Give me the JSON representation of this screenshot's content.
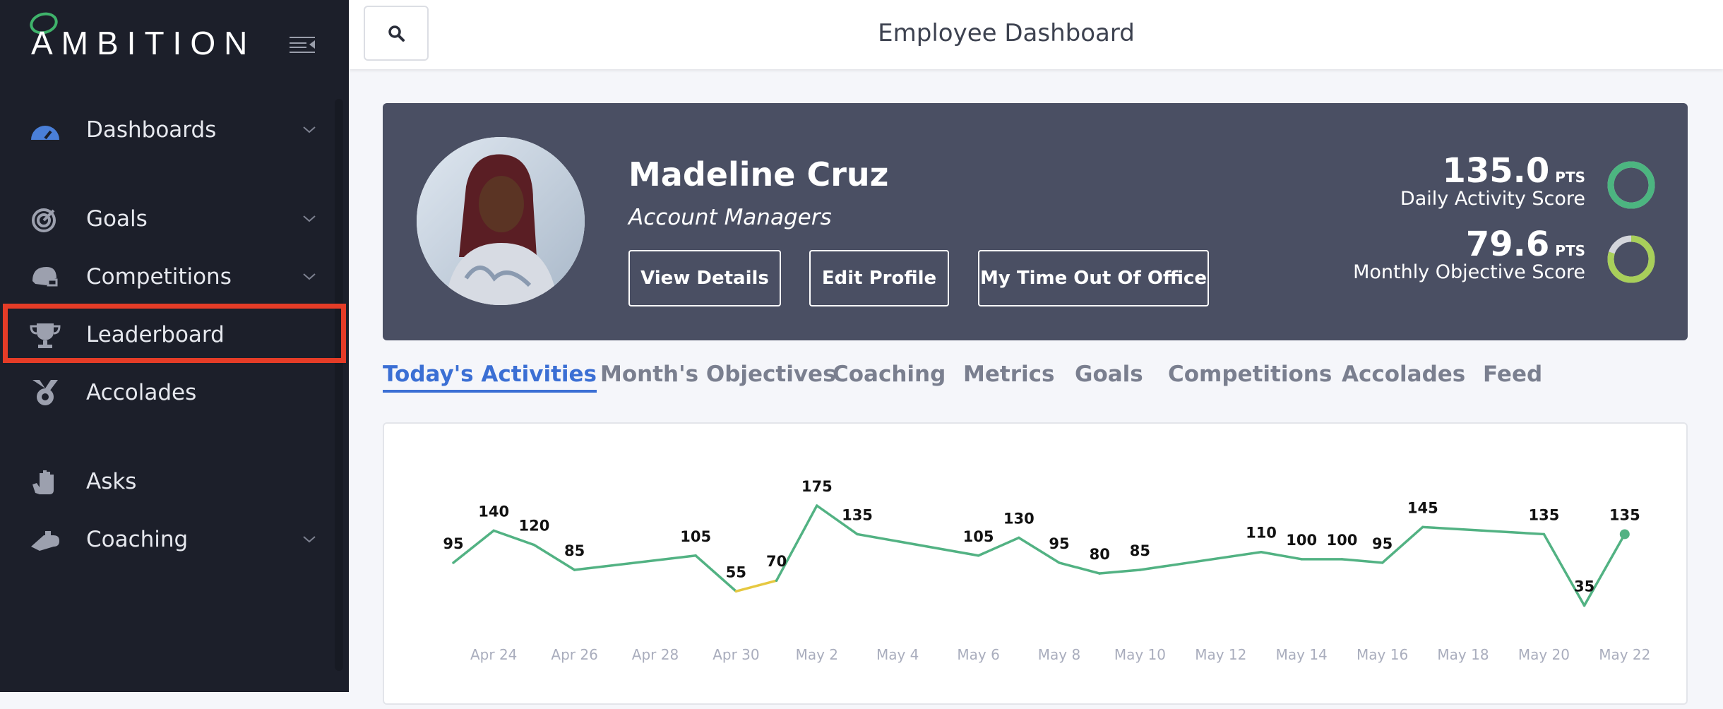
{
  "sidebar": {
    "logo": "AMBITION",
    "items": [
      {
        "label": "Dashboards",
        "icon": "dashboard-gauge-icon",
        "chevron": true
      },
      {
        "label": "Goals",
        "icon": "target-icon",
        "chevron": true
      },
      {
        "label": "Competitions",
        "icon": "football-helmet-icon",
        "chevron": true
      },
      {
        "label": "Leaderboard",
        "icon": "trophy-icon",
        "chevron": false
      },
      {
        "label": "Accolades",
        "icon": "medal-icon",
        "chevron": false
      },
      {
        "label": "Asks",
        "icon": "hand-icon",
        "chevron": false
      },
      {
        "label": "Coaching",
        "icon": "whistle-icon",
        "chevron": true
      }
    ]
  },
  "header": {
    "title": "Employee Dashboard"
  },
  "profile": {
    "name": "Madeline Cruz",
    "team": "Account Managers",
    "buttons": [
      "View Details",
      "Edit Profile",
      "My Time Out Of Office"
    ],
    "scores": [
      {
        "value": "135.0",
        "unit": "PTS",
        "label": "Daily Activity Score",
        "fill": 1.0,
        "color": "#4cb580"
      },
      {
        "value": "79.6",
        "unit": "PTS",
        "label": "Monthly Objective Score",
        "fill": 0.8,
        "color": "#a8cf5a"
      }
    ]
  },
  "tabs": [
    "Today's Activities",
    "Month's Objectives",
    "Coaching",
    "Metrics",
    "Goals",
    "Competitions",
    "Accolades",
    "Feed"
  ],
  "chart_data": {
    "type": "line",
    "title": "",
    "x": [
      "Apr 23",
      "Apr 24",
      "Apr 25",
      "Apr 26",
      "Apr 29",
      "Apr 30",
      "May 1",
      "May 2",
      "May 3",
      "May 6",
      "May 7",
      "May 8",
      "May 9",
      "May 10",
      "May 13",
      "May 14",
      "May 15",
      "May 16",
      "May 17",
      "May 20",
      "May 21",
      "May 22"
    ],
    "day_index": [
      0,
      1,
      2,
      3,
      6,
      7,
      8,
      9,
      10,
      13,
      14,
      15,
      16,
      17,
      20,
      21,
      22,
      23,
      24,
      27,
      28,
      29
    ],
    "values": [
      95,
      140,
      120,
      85,
      105,
      55,
      70,
      175,
      135,
      105,
      130,
      95,
      80,
      85,
      110,
      100,
      100,
      95,
      145,
      135,
      35,
      135
    ],
    "x_tick_labels": [
      "Apr 24",
      "Apr 26",
      "Apr 28",
      "Apr 30",
      "May 2",
      "May 4",
      "May 6",
      "May 8",
      "May 10",
      "May 12",
      "May 14",
      "May 16",
      "May 18",
      "May 20",
      "May 22"
    ],
    "x_tick_day_index": [
      1,
      3,
      5,
      7,
      9,
      11,
      13,
      15,
      17,
      19,
      21,
      23,
      25,
      27,
      29
    ],
    "ylim": [
      35,
      175
    ],
    "colors": {
      "high": "#52b283",
      "mid": "#e6c840",
      "low": "#f0a030"
    }
  }
}
